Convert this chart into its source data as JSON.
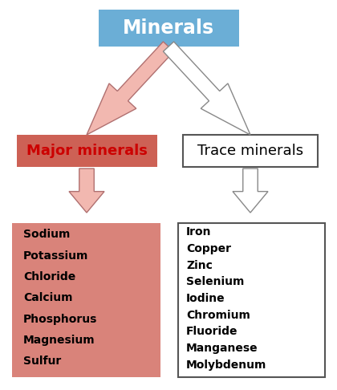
{
  "title": "Minerals",
  "title_box_color": "#6baed6",
  "title_text_color": "#FFFFFF",
  "title_fontsize": 17,
  "major_label": "Major minerals",
  "major_box_facecolor": "#cd6155",
  "major_text_color": "#cc0000",
  "major_fontsize": 13,
  "trace_label": "Trace minerals",
  "trace_box_facecolor": "#FFFFFF",
  "trace_box_edgecolor": "#555555",
  "trace_text_color": "#000000",
  "trace_fontsize": 13,
  "major_minerals": [
    "Sodium",
    "Potassium",
    "Chloride",
    "Calcium",
    "Phosphorus",
    "Magnesium",
    "Sulfur"
  ],
  "major_minerals_box_color": "#d9837a",
  "major_minerals_text_color": "#000000",
  "trace_minerals": [
    "Iron",
    "Copper",
    "Zinc",
    "Selenium",
    "Iodine",
    "Chromium",
    "Fluoride",
    "Manganese",
    "Molybdenum"
  ],
  "trace_minerals_box_color": "#FFFFFF",
  "trace_minerals_text_color": "#000000",
  "arrow_major_fill": "#f2b8b0",
  "arrow_major_edge": "#b07070",
  "arrow_trace_fill": "#FFFFFF",
  "arrow_trace_edge": "#888888",
  "background_color": "#FFFFFF",
  "list_fontsize": 10
}
